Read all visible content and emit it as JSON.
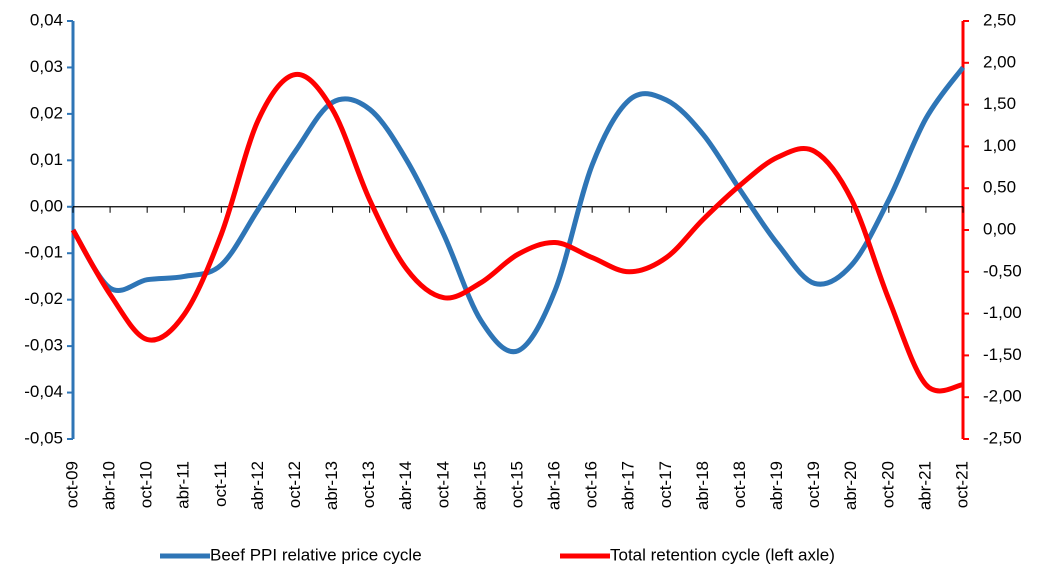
{
  "chart_data": {
    "type": "line",
    "categories": [
      "oct-09",
      "abr-10",
      "oct-10",
      "abr-11",
      "oct-11",
      "abr-12",
      "oct-12",
      "abr-13",
      "oct-13",
      "abr-14",
      "oct-14",
      "abr-15",
      "oct-15",
      "abr-16",
      "oct-16",
      "abr-17",
      "oct-17",
      "abr-18",
      "oct-18",
      "abr-19",
      "oct-19",
      "abr-20",
      "oct-20",
      "abr-21",
      "oct-21"
    ],
    "series": [
      {
        "name": "Beef PPI relative price cycle",
        "color": "#2e75b6",
        "values": [
          -0.005,
          -0.0175,
          -0.0157,
          -0.015,
          -0.0125,
          -0.0005,
          0.012,
          0.0225,
          0.021,
          0.01,
          -0.006,
          -0.0245,
          -0.031,
          -0.018,
          0.009,
          0.023,
          0.023,
          0.0155,
          0.0035,
          -0.008,
          -0.0165,
          -0.0125,
          0.0015,
          0.019,
          0.03
        ]
      },
      {
        "name": "Total retention cycle (left axle)",
        "color": "#ff0000",
        "axis": "y2",
        "values": [
          0.0,
          -0.77,
          -1.31,
          -1.01,
          -0.05,
          1.32,
          1.86,
          1.44,
          0.36,
          -0.47,
          -0.81,
          -0.63,
          -0.29,
          -0.15,
          -0.33,
          -0.5,
          -0.33,
          0.13,
          0.54,
          0.87,
          0.94,
          0.36,
          -0.83,
          -1.85,
          -1.85
        ]
      }
    ],
    "ylim": [
      -0.05,
      0.04
    ],
    "yticks": [
      {
        "value": -0.05,
        "label": "-0,05"
      },
      {
        "value": -0.04,
        "label": "-0,04"
      },
      {
        "value": -0.03,
        "label": "-0,03"
      },
      {
        "value": -0.02,
        "label": "-0,02"
      },
      {
        "value": -0.01,
        "label": "-0,01"
      },
      {
        "value": 0,
        "label": "0,00"
      },
      {
        "value": 0.01,
        "label": "0,01"
      },
      {
        "value": 0.02,
        "label": "0,02"
      },
      {
        "value": 0.03,
        "label": "0,03"
      },
      {
        "value": 0.04,
        "label": "0,04"
      }
    ],
    "y2lim": [
      -2.5,
      2.5
    ],
    "y2ticks": [
      {
        "value": -2.5,
        "label": "-2,50"
      },
      {
        "value": -2,
        "label": "-2,00"
      },
      {
        "value": -1.5,
        "label": "-1,50"
      },
      {
        "value": -1,
        "label": "-1,00"
      },
      {
        "value": -0.5,
        "label": "-0,50"
      },
      {
        "value": 0,
        "label": "0,00"
      },
      {
        "value": 0.5,
        "label": "0,50"
      },
      {
        "value": 1,
        "label": "1,00"
      },
      {
        "value": 1.5,
        "label": "1,50"
      },
      {
        "value": 2,
        "label": "2,00"
      },
      {
        "value": 2.5,
        "label": "2,50"
      }
    ],
    "legend": "bottom"
  }
}
